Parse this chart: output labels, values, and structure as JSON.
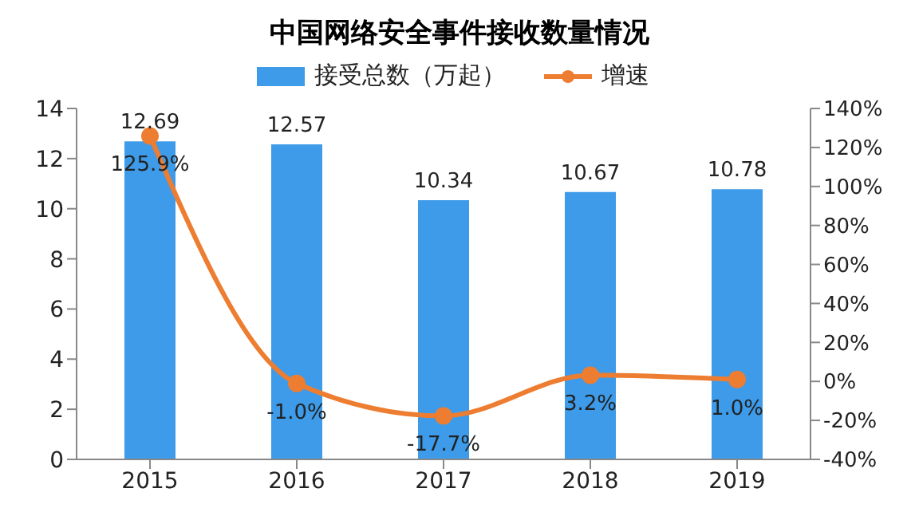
{
  "chart_data": {
    "type": "bar",
    "title": "中国网络安全事件接收数量情况",
    "categories": [
      "2015",
      "2016",
      "2017",
      "2018",
      "2019"
    ],
    "series": [
      {
        "name": "接受总数（万起）",
        "color": "#3d9be9",
        "values": [
          12.69,
          12.57,
          10.34,
          10.67,
          10.78
        ],
        "value_labels": [
          "12.69",
          "12.57",
          "10.34",
          "10.67",
          "10.78"
        ]
      },
      {
        "name": "增速",
        "type": "line",
        "axis": "y2",
        "color": "#ed7d31",
        "values": [
          125.9,
          -1.0,
          -17.7,
          3.2,
          1.0
        ],
        "value_labels": [
          "125.9%",
          "-1.0%",
          "-17.7%",
          "3.2%",
          "1.0%"
        ]
      }
    ],
    "ylim": [
      0,
      14
    ],
    "yticks": [
      0,
      2,
      4,
      6,
      8,
      10,
      12,
      14
    ],
    "y2lim": [
      -40,
      140
    ],
    "y2ticks": [
      {
        "value": -40,
        "label": "-40%"
      },
      {
        "value": -20,
        "label": "-20%"
      },
      {
        "value": 0,
        "label": "0%"
      },
      {
        "value": 20,
        "label": "20%"
      },
      {
        "value": 40,
        "label": "40%"
      },
      {
        "value": 60,
        "label": "60%"
      },
      {
        "value": 80,
        "label": "80%"
      },
      {
        "value": 100,
        "label": "100%"
      },
      {
        "value": 120,
        "label": "120%"
      },
      {
        "value": 140,
        "label": "140%"
      }
    ],
    "legend": "top",
    "grid": false,
    "marker": "circle"
  }
}
